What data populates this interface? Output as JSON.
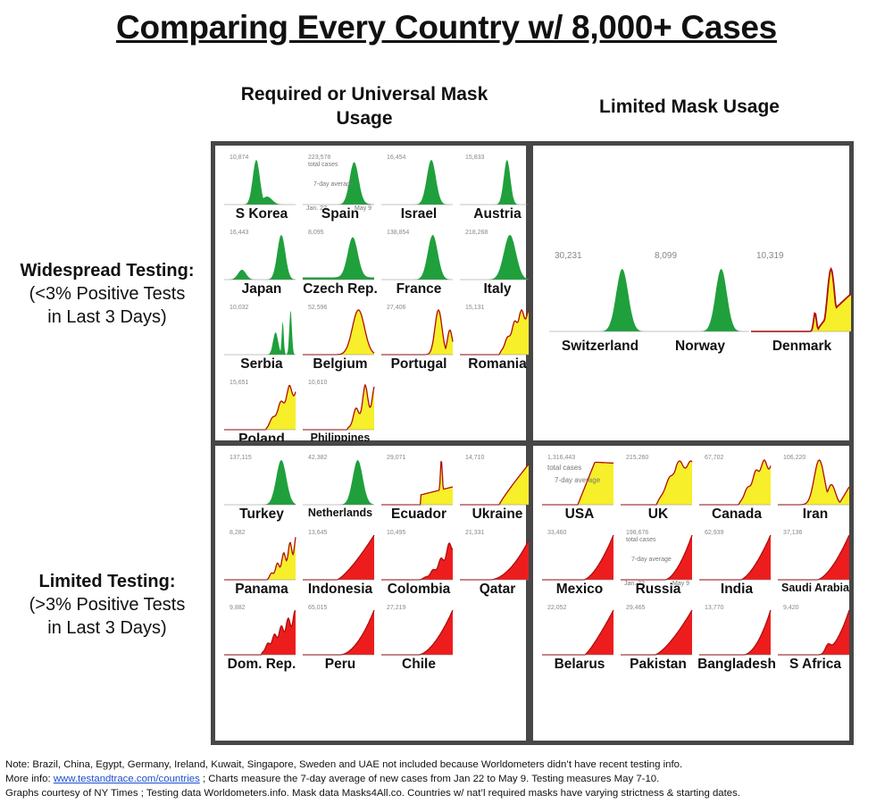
{
  "title": "Comparing Every Country w/ 8,000+ Cases",
  "column_headers": {
    "required": "Required or Universal Mask Usage",
    "limited": "Limited Mask Usage"
  },
  "row_headers": {
    "widespread": {
      "title": "Widespread Testing:",
      "line1": "(<3% Positive Tests",
      "line2": "in Last 3 Days)"
    },
    "limited": {
      "title": "Limited Testing:",
      "line1": "(>3% Positive Tests",
      "line2": "in Last 3 Days)"
    }
  },
  "colors": {
    "green": "#1fa03c",
    "yellow": "#f7ef2a",
    "red": "#ee1d1d",
    "trend_line": "#b00d0d",
    "border": "#474747"
  },
  "chart_data": {
    "type": "area",
    "x_range": [
      "Jan. 22",
      "May 9"
    ],
    "series_meaning": "7-day average of new cases",
    "annotations": {
      "total_cases": "total cases",
      "seven_day": "7-day average",
      "start": "Jan. 22",
      "end": "May 9"
    },
    "quadrants": [
      {
        "name": "widespread-required",
        "countries": [
          {
            "name": "S Korea",
            "peak": "10,874",
            "color": "green",
            "shape": "skorea"
          },
          {
            "name": "Spain",
            "peak": "223,578",
            "color": "green",
            "shape": "spain",
            "annotated": true
          },
          {
            "name": "Israel",
            "peak": "16,454",
            "color": "green",
            "shape": "israel"
          },
          {
            "name": "Austria",
            "peak": "15,833",
            "color": "green",
            "shape": "austria"
          },
          {
            "name": "Japan",
            "peak": "16,443",
            "color": "green",
            "shape": "japan"
          },
          {
            "name": "Czech Rep.",
            "peak": "8,095",
            "color": "green",
            "shape": "czech"
          },
          {
            "name": "France",
            "peak": "138,854",
            "color": "green",
            "shape": "france"
          },
          {
            "name": "Italy",
            "peak": "218,268",
            "color": "green",
            "shape": "italy"
          },
          {
            "name": "Serbia",
            "peak": "10,032",
            "color": "green",
            "shape": "serbia"
          },
          {
            "name": "Belgium",
            "peak": "52,596",
            "color": "yellow",
            "shape": "belgium"
          },
          {
            "name": "Portugal",
            "peak": "27,406",
            "color": "yellow",
            "shape": "portugal"
          },
          {
            "name": "Romania",
            "peak": "15,131",
            "color": "yellow",
            "shape": "romania"
          },
          {
            "name": "Poland",
            "peak": "15,651",
            "color": "yellow",
            "shape": "poland"
          },
          {
            "name": "Philippines",
            "peak": "10,610",
            "color": "yellow",
            "shape": "philippines"
          }
        ]
      },
      {
        "name": "widespread-limited",
        "countries": [
          {
            "name": "Switzerland",
            "peak": "30,231",
            "color": "green",
            "shape": "switzerland"
          },
          {
            "name": "Norway",
            "peak": "8,099",
            "color": "green",
            "shape": "norway"
          },
          {
            "name": "Denmark",
            "peak": "10,319",
            "color": "yellow",
            "shape": "denmark"
          }
        ]
      },
      {
        "name": "limited-required",
        "countries": [
          {
            "name": "Turkey",
            "peak": "137,115",
            "color": "green",
            "shape": "turkey"
          },
          {
            "name": "Netherlands",
            "peak": "42,382",
            "color": "green",
            "shape": "netherlands"
          },
          {
            "name": "Ecuador",
            "peak": "29,071",
            "color": "yellow",
            "shape": "ecuador"
          },
          {
            "name": "Ukraine",
            "peak": "14,710",
            "color": "yellow",
            "shape": "ukraine"
          },
          {
            "name": "Panama",
            "peak": "8,282",
            "color": "yellow",
            "shape": "panama"
          },
          {
            "name": "Indonesia",
            "peak": "13,645",
            "color": "red",
            "shape": "indonesia"
          },
          {
            "name": "Colombia",
            "peak": "10,495",
            "color": "red",
            "shape": "colombia"
          },
          {
            "name": "Qatar",
            "peak": "21,331",
            "color": "red",
            "shape": "qatar"
          },
          {
            "name": "Dom. Rep.",
            "peak": "9,882",
            "color": "red",
            "shape": "domrep"
          },
          {
            "name": "Peru",
            "peak": "65,015",
            "color": "red",
            "shape": "peru"
          },
          {
            "name": "Chile",
            "peak": "27,219",
            "color": "red",
            "shape": "chile"
          }
        ]
      },
      {
        "name": "limited-limited",
        "countries": [
          {
            "name": "USA",
            "peak": "1,316,443",
            "color": "yellow",
            "shape": "usa",
            "annotated": true
          },
          {
            "name": "UK",
            "peak": "215,260",
            "color": "yellow",
            "shape": "uk"
          },
          {
            "name": "Canada",
            "peak": "67,702",
            "color": "yellow",
            "shape": "canada"
          },
          {
            "name": "Iran",
            "peak": "106,220",
            "color": "yellow",
            "shape": "iran"
          },
          {
            "name": "Mexico",
            "peak": "33,460",
            "color": "red",
            "shape": "mexico"
          },
          {
            "name": "Russia",
            "peak": "198,676",
            "color": "red",
            "shape": "russia",
            "annotated": true
          },
          {
            "name": "India",
            "peak": "62,939",
            "color": "red",
            "shape": "india"
          },
          {
            "name": "Saudi Arabia",
            "peak": "37,136",
            "color": "red",
            "shape": "saudi"
          },
          {
            "name": "Belarus",
            "peak": "22,052",
            "color": "red",
            "shape": "belarus"
          },
          {
            "name": "Pakistan",
            "peak": "29,465",
            "color": "red",
            "shape": "pakistan"
          },
          {
            "name": "Bangladesh",
            "peak": "13,770",
            "color": "red",
            "shape": "bangladesh"
          },
          {
            "name": "S Africa",
            "peak": "9,420",
            "color": "red",
            "shape": "safrica"
          }
        ]
      }
    ]
  },
  "footer": {
    "line1": "Note: Brazil, China, Egypt, Germany, Ireland, Kuwait, Singapore, Sweden and UAE not included because Worldometers didn’t have recent testing info.",
    "line2_prefix": "More info: ",
    "line2_link": "www.testandtrace.com/countries",
    "line2_suffix": " ; Charts measure the 7-day average of new cases from Jan 22 to May 9. Testing measures May 7-10.",
    "line3": "Graphs courtesy of NY Times ; Testing data Worldometers.info. Mask data Masks4All.co. Countries w/ nat’l required masks have varying strictness & starting dates."
  }
}
